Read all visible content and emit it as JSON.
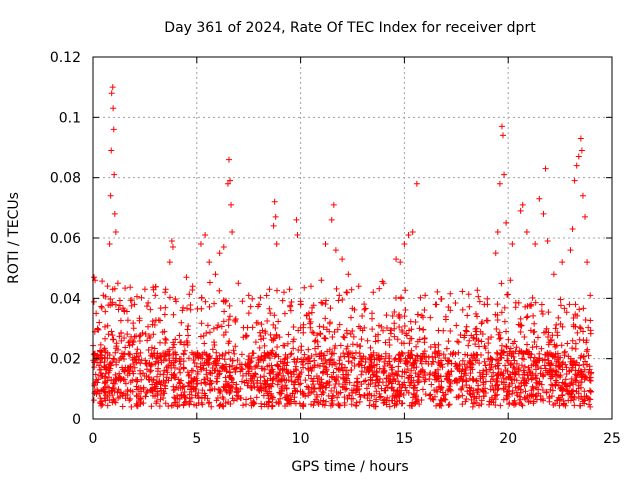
{
  "chart_data": {
    "type": "scatter",
    "title": "Day 361 of 2024, Rate Of TEC Index for receiver dprt",
    "xlabel": "GPS time / hours",
    "ylabel": "ROTI / TECUs",
    "xlim": [
      0,
      25
    ],
    "ylim": [
      0,
      0.12
    ],
    "xticks": [
      0,
      5,
      10,
      15,
      20,
      25
    ],
    "xtick_labels": [
      "0",
      "5",
      "10",
      "15",
      "20",
      "25"
    ],
    "yticks": [
      0,
      0.02,
      0.04,
      0.06,
      0.08,
      0.1,
      0.12
    ],
    "ytick_labels": [
      "0",
      "0.02",
      "0.04",
      "0.06",
      "0.08",
      "0.1",
      "0.12"
    ],
    "grid": true,
    "marker": "plus",
    "color": "#ff0000",
    "series": [
      {
        "name": "ROTI",
        "points": [
          [
            0.05,
            0.047
          ],
          [
            0.1,
            0.046
          ],
          [
            0.15,
            0.035
          ],
          [
            0.3,
            0.032
          ],
          [
            0.5,
            0.041
          ],
          [
            0.8,
            0.058
          ],
          [
            0.85,
            0.074
          ],
          [
            0.88,
            0.089
          ],
          [
            0.9,
            0.108
          ],
          [
            0.95,
            0.11
          ],
          [
            0.97,
            0.103
          ],
          [
            1.0,
            0.096
          ],
          [
            1.02,
            0.081
          ],
          [
            1.05,
            0.068
          ],
          [
            1.1,
            0.062
          ],
          [
            1.2,
            0.045
          ],
          [
            1.5,
            0.036
          ],
          [
            2.0,
            0.038
          ],
          [
            2.5,
            0.043
          ],
          [
            3.0,
            0.041
          ],
          [
            3.5,
            0.043
          ],
          [
            3.7,
            0.052
          ],
          [
            3.8,
            0.059
          ],
          [
            3.85,
            0.057
          ],
          [
            4.0,
            0.039
          ],
          [
            4.5,
            0.047
          ],
          [
            4.8,
            0.044
          ],
          [
            5.2,
            0.058
          ],
          [
            5.4,
            0.061
          ],
          [
            5.6,
            0.052
          ],
          [
            5.9,
            0.048
          ],
          [
            6.1,
            0.055
          ],
          [
            6.3,
            0.057
          ],
          [
            6.5,
            0.078
          ],
          [
            6.55,
            0.086
          ],
          [
            6.6,
            0.079
          ],
          [
            6.65,
            0.071
          ],
          [
            6.7,
            0.062
          ],
          [
            7.0,
            0.045
          ],
          [
            7.5,
            0.041
          ],
          [
            8.0,
            0.038
          ],
          [
            8.5,
            0.043
          ],
          [
            8.7,
            0.064
          ],
          [
            8.75,
            0.072
          ],
          [
            8.8,
            0.067
          ],
          [
            8.85,
            0.058
          ],
          [
            9.2,
            0.042
          ],
          [
            9.8,
            0.066
          ],
          [
            9.85,
            0.061
          ],
          [
            10.0,
            0.039
          ],
          [
            10.5,
            0.044
          ],
          [
            11.0,
            0.046
          ],
          [
            11.2,
            0.058
          ],
          [
            11.5,
            0.066
          ],
          [
            11.6,
            0.071
          ],
          [
            11.7,
            0.056
          ],
          [
            12.0,
            0.053
          ],
          [
            12.3,
            0.048
          ],
          [
            12.8,
            0.044
          ],
          [
            13.5,
            0.042
          ],
          [
            14.0,
            0.045
          ],
          [
            14.6,
            0.053
          ],
          [
            14.8,
            0.052
          ],
          [
            15.0,
            0.058
          ],
          [
            15.2,
            0.061
          ],
          [
            15.4,
            0.062
          ],
          [
            15.6,
            0.078
          ],
          [
            16.0,
            0.041
          ],
          [
            16.5,
            0.038
          ],
          [
            17.0,
            0.033
          ],
          [
            17.5,
            0.031
          ],
          [
            18.0,
            0.029
          ],
          [
            18.5,
            0.034
          ],
          [
            19.0,
            0.038
          ],
          [
            19.4,
            0.055
          ],
          [
            19.5,
            0.062
          ],
          [
            19.6,
            0.078
          ],
          [
            19.7,
            0.097
          ],
          [
            19.75,
            0.094
          ],
          [
            19.8,
            0.081
          ],
          [
            19.9,
            0.065
          ],
          [
            20.2,
            0.058
          ],
          [
            20.6,
            0.069
          ],
          [
            20.7,
            0.071
          ],
          [
            20.9,
            0.062
          ],
          [
            21.3,
            0.058
          ],
          [
            21.5,
            0.073
          ],
          [
            21.7,
            0.068
          ],
          [
            21.8,
            0.083
          ],
          [
            21.9,
            0.059
          ],
          [
            22.2,
            0.048
          ],
          [
            22.6,
            0.052
          ],
          [
            23.0,
            0.056
          ],
          [
            23.1,
            0.063
          ],
          [
            23.2,
            0.079
          ],
          [
            23.3,
            0.084
          ],
          [
            23.4,
            0.087
          ],
          [
            23.5,
            0.093
          ],
          [
            23.55,
            0.089
          ],
          [
            23.6,
            0.074
          ],
          [
            23.7,
            0.067
          ],
          [
            23.8,
            0.052
          ],
          [
            23.95,
            0.041
          ]
        ]
      }
    ]
  }
}
